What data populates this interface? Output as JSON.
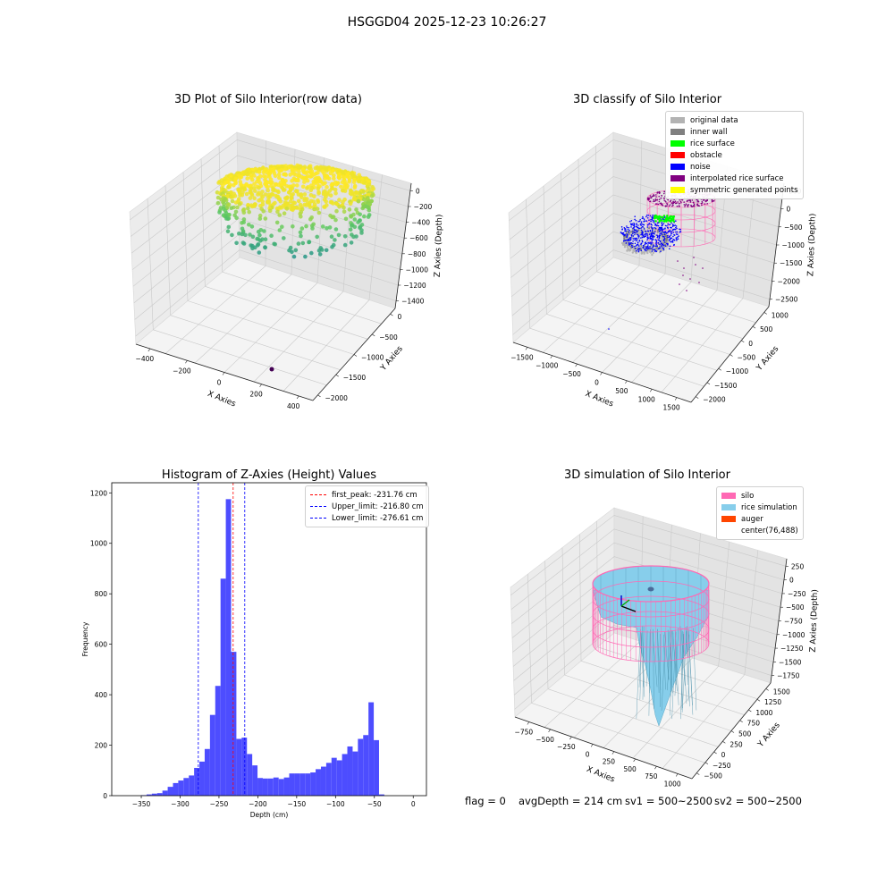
{
  "suptitle": "HSGGD04 2025-12-23 10:26:27",
  "footer": {
    "flag": "flag = 0",
    "avg_depth": "avgDepth = 214 cm",
    "sv1": "sv1 = 500~2500",
    "sv2": "sv2 = 500~2500"
  },
  "colors": {
    "histogram_bar": "#4d4dff",
    "first_peak_line": "#ff0000",
    "limit_lines": "#0000ff",
    "silo": "#ff69b4",
    "rice_simulation": "#87ceeb",
    "auger": "#ff4500"
  },
  "chart_data": [
    {
      "type": "scatter",
      "projection": "3d",
      "title": "3D Plot of Silo Interior(row data)",
      "xlabel": "X Axies",
      "ylabel": "Y Axies",
      "zlabel": "Z Axies (Depth)",
      "x_ticks": [
        "−400",
        "−200",
        "0",
        "200",
        "400"
      ],
      "y_ticks": [
        "0",
        "−500",
        "−1000",
        "−1500",
        "−2000"
      ],
      "z_ticks": [
        "0",
        "−200",
        "−400",
        "−600",
        "−800",
        "−1000",
        "−1200",
        "−1400"
      ],
      "colormap": "viridis",
      "grid": true
    },
    {
      "type": "scatter",
      "projection": "3d",
      "title": "3D classify of Silo Interior",
      "xlabel": "X Axies",
      "ylabel": "Y Axies",
      "zlabel": "Z Axies (Depth)",
      "x_ticks": [
        "−1500",
        "−1000",
        "−500",
        "0",
        "500",
        "1000",
        "1500"
      ],
      "y_ticks": [
        "1000",
        "500",
        "0",
        "−500",
        "−1000",
        "−1500",
        "−2000"
      ],
      "z_ticks": [
        "500",
        "0",
        "−500",
        "−1000",
        "−1500",
        "−2000",
        "−2500"
      ],
      "legend_position": "top-right",
      "legend": [
        {
          "label": "original data",
          "color": "#b3b3b3"
        },
        {
          "label": "inner wall",
          "color": "#808080"
        },
        {
          "label": "rice surface",
          "color": "#00ff00"
        },
        {
          "label": "obstacle",
          "color": "#ff0000"
        },
        {
          "label": "noise",
          "color": "#0000ff"
        },
        {
          "label": "interpolated rice surface",
          "color": "#800080"
        },
        {
          "label": "symmetric generated points",
          "color": "#ffff00"
        }
      ],
      "grid": true
    },
    {
      "type": "bar",
      "subtype": "histogram",
      "title": "Histogram of Z-Axies (Height) Values",
      "xlabel": "Depth (cm)",
      "ylabel": "Frequency",
      "xlim": [
        -388,
        17
      ],
      "ylim": [
        0,
        1240
      ],
      "x_ticks": [
        -350,
        -300,
        -250,
        -200,
        -150,
        -100,
        -50,
        0
      ],
      "y_ticks": [
        0,
        200,
        400,
        600,
        800,
        1000,
        1200
      ],
      "bin_width": 6.8,
      "bin_start": -350,
      "values": [
        2,
        5,
        8,
        10,
        20,
        35,
        50,
        60,
        70,
        80,
        110,
        135,
        185,
        320,
        435,
        860,
        1175,
        570,
        225,
        230,
        165,
        120,
        70,
        68,
        68,
        72,
        66,
        72,
        88,
        88,
        88,
        88,
        92,
        105,
        115,
        130,
        150,
        140,
        165,
        195,
        175,
        225,
        240,
        370,
        220,
        5
      ],
      "vlines": [
        {
          "label": "first_peak: -231.76 cm",
          "x": -231.76,
          "color": "#ff0000"
        },
        {
          "label": "Upper_limit: -216.80 cm",
          "x": -216.8,
          "color": "#0000ff"
        },
        {
          "label": "Lower_limit: -276.61 cm",
          "x": -276.61,
          "color": "#0000ff"
        }
      ],
      "legend_position": "top-right",
      "grid": false
    },
    {
      "type": "area",
      "projection": "3d",
      "title": "3D simulation of Silo Interior",
      "xlabel": "X Axies",
      "ylabel": "Y Axies",
      "zlabel": "Z Axies (Depth)",
      "x_ticks": [
        "−750",
        "−500",
        "−250",
        "0",
        "250",
        "500",
        "750",
        "1000"
      ],
      "y_ticks": [
        "1500",
        "1250",
        "1000",
        "750",
        "500",
        "250",
        "0",
        "−250",
        "−500"
      ],
      "z_ticks": [
        "250",
        "0",
        "−250",
        "−500",
        "−750",
        "−1000",
        "−1250",
        "−1500",
        "−1750"
      ],
      "legend_position": "top-right",
      "legend": [
        {
          "label": "silo",
          "color": "#ff69b4"
        },
        {
          "label": "rice simulation",
          "color": "#87ceeb"
        },
        {
          "label": "auger",
          "color": "#ff4500"
        },
        {
          "label": "center(76,488)",
          "color": ""
        }
      ],
      "grid": true
    }
  ]
}
